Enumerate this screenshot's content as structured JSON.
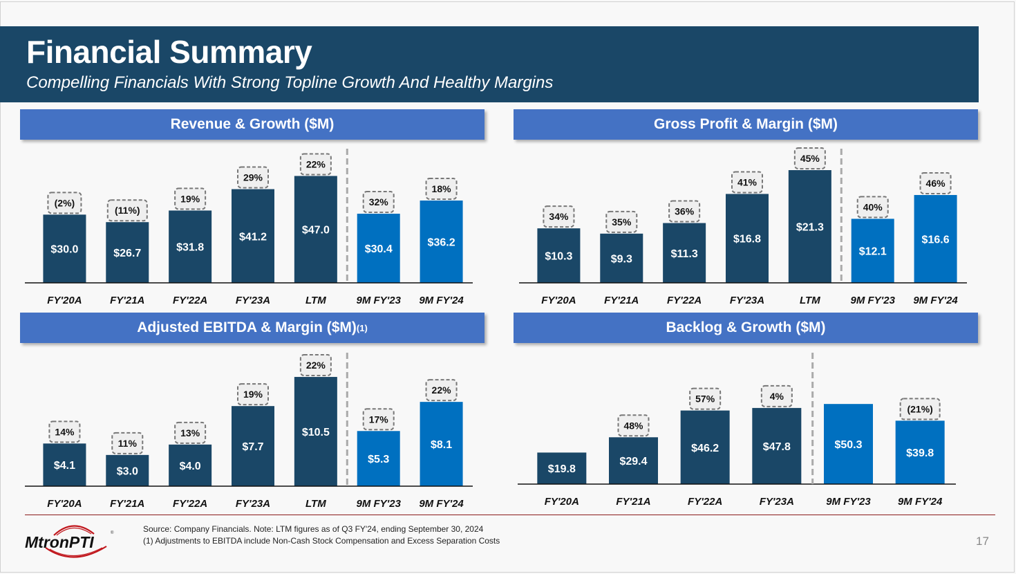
{
  "header": {
    "title": "Financial Summary",
    "subtitle": "Compelling Financials With Strong Topline Growth And Healthy Margins"
  },
  "colors": {
    "actual": "#1a4767",
    "interim": "#0070c0",
    "header": "#1a4767",
    "panel_title": "#4472c4"
  },
  "chart_data": [
    {
      "id": "revenue",
      "type": "bar",
      "title": "Revenue & Growth ($M)",
      "title_sup": "",
      "categories": [
        "FY'20A",
        "FY'21A",
        "FY'22A",
        "FY'23A",
        "LTM",
        "9M FY'23",
        "9M  FY'24"
      ],
      "values": [
        30.0,
        26.7,
        31.8,
        41.2,
        47.0,
        30.4,
        36.2
      ],
      "value_labels": [
        "$30.0",
        "$26.7",
        "$31.8",
        "$41.2",
        "$47.0",
        "$30.4",
        "$36.2"
      ],
      "pct_labels": [
        "(2%)",
        "(11%)",
        "19%",
        "29%",
        "22%",
        "32%",
        "18%"
      ],
      "series_type": [
        "actual",
        "actual",
        "actual",
        "actual",
        "actual",
        "interim",
        "interim"
      ],
      "divider_after_index": 4,
      "xlabel": "",
      "ylabel": "",
      "ylim": [
        0,
        52
      ],
      "grid": false
    },
    {
      "id": "gross-profit",
      "type": "bar",
      "title": "Gross Profit & Margin ($M)",
      "title_sup": "",
      "categories": [
        "FY'20A",
        "FY'21A",
        "FY'22A",
        "FY'23A",
        "LTM",
        "9M FY'23",
        "9M FY'24"
      ],
      "values": [
        10.3,
        9.3,
        11.3,
        16.8,
        21.3,
        12.1,
        16.6
      ],
      "value_labels": [
        "$10.3",
        "$9.3",
        "$11.3",
        "$16.8",
        "$21.3",
        "$12.1",
        "$16.6"
      ],
      "pct_labels": [
        "34%",
        "35%",
        "36%",
        "41%",
        "45%",
        "40%",
        "46%"
      ],
      "series_type": [
        "actual",
        "actual",
        "actual",
        "actual",
        "actual",
        "interim",
        "interim"
      ],
      "divider_after_index": 4,
      "xlabel": "",
      "ylabel": "",
      "ylim": [
        0,
        23
      ],
      "grid": false
    },
    {
      "id": "ebitda",
      "type": "bar",
      "title": "Adjusted EBITDA & Margin ($M)",
      "title_sup": "(1)",
      "categories": [
        "FY'20A",
        "FY'21A",
        "FY'22A",
        "FY'23A",
        "LTM",
        "9M FY'23",
        "9M FY'24"
      ],
      "values": [
        4.1,
        3.0,
        4.0,
        7.7,
        10.5,
        5.3,
        8.1
      ],
      "value_labels": [
        "$4.1",
        "$3.0",
        "$4.0",
        "$7.7",
        "$10.5",
        "$5.3",
        "$8.1"
      ],
      "pct_labels": [
        "14%",
        "11%",
        "13%",
        "19%",
        "22%",
        "17%",
        "22%"
      ],
      "series_type": [
        "actual",
        "actual",
        "actual",
        "actual",
        "actual",
        "interim",
        "interim"
      ],
      "divider_after_index": 4,
      "xlabel": "",
      "ylabel": "",
      "ylim": [
        0,
        11.5
      ],
      "grid": false
    },
    {
      "id": "backlog",
      "type": "bar",
      "title": "Backlog & Growth ($M)",
      "title_sup": "",
      "categories": [
        "FY'20A",
        "FY'21A",
        "FY'22A",
        "FY'23A",
        "9M FY'23",
        "9M FY'24"
      ],
      "values": [
        19.8,
        29.4,
        46.2,
        47.8,
        50.3,
        39.8
      ],
      "value_labels": [
        "$19.8",
        "$29.4",
        "$46.2",
        "$47.8",
        "$50.3",
        "$39.8"
      ],
      "pct_labels": [
        "",
        "48%",
        "57%",
        "4%",
        "",
        "(21%)"
      ],
      "series_type": [
        "actual",
        "actual",
        "actual",
        "actual",
        "interim",
        "interim"
      ],
      "divider_after_index": 3,
      "xlabel": "",
      "ylabel": "",
      "ylim": [
        0,
        66
      ],
      "grid": false
    }
  ],
  "footer": {
    "logo_text": "MtronPTI",
    "logo_mark": "®",
    "source_note": "Source: Company Financials. Note: LTM figures as of Q3 FY'24, ending September 30, 2024",
    "footnote_1": "(1) Adjustments to EBITDA include Non-Cash Stock Compensation and Excess Separation Costs",
    "page_number": "17"
  }
}
